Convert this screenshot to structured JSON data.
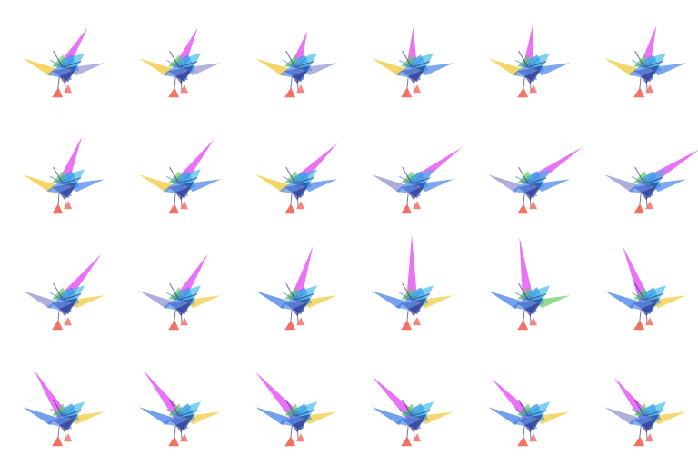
{
  "grid": {
    "rows": 4,
    "cols": 6
  },
  "colors": {
    "background": "#ffffff",
    "magenta": "#e23cf2",
    "blue": "#3f7de6",
    "navy": "#2a2f86",
    "green": "#61c95a",
    "yellow": "#f1c52d",
    "lavender": "#8e8fd0",
    "cyan": "#38b7e8",
    "salmon": "#f26a5c"
  },
  "frames": [
    {
      "spike_angle": -58,
      "spike_length": 52,
      "left_blade": "yellow",
      "right_blade": "lavender"
    },
    {
      "spike_angle": -65,
      "spike_length": 48,
      "left_blade": "yellow",
      "right_blade": "lavender"
    },
    {
      "spike_angle": -72,
      "spike_length": 42,
      "left_blade": "yellow",
      "right_blade": "lavender"
    },
    {
      "spike_angle": -88,
      "spike_length": 44,
      "left_blade": "yellow",
      "right_blade": "blue"
    },
    {
      "spike_angle": -84,
      "spike_length": 46,
      "left_blade": "yellow",
      "right_blade": "blue"
    },
    {
      "spike_angle": -74,
      "spike_length": 48,
      "left_blade": "yellow",
      "right_blade": "blue"
    },
    {
      "spike_angle": -68,
      "spike_length": 56,
      "left_blade": "yellow",
      "right_blade": "blue"
    },
    {
      "spike_angle": -52,
      "spike_length": 62,
      "left_blade": "yellow",
      "right_blade": "blue"
    },
    {
      "spike_angle": -44,
      "spike_length": 64,
      "left_blade": "yellow",
      "right_blade": "blue"
    },
    {
      "spike_angle": -36,
      "spike_length": 68,
      "left_blade": "lavender",
      "right_blade": "blue"
    },
    {
      "spike_angle": -34,
      "spike_length": 72,
      "left_blade": "lavender",
      "right_blade": "blue"
    },
    {
      "spike_angle": -32,
      "spike_length": 72,
      "left_blade": "lavender",
      "right_blade": "blue"
    },
    {
      "spike_angle": -50,
      "spike_length": 66,
      "left_blade": "lavender",
      "right_blade": "yellow"
    },
    {
      "spike_angle": -58,
      "spike_length": 60,
      "left_blade": "lavender",
      "right_blade": "yellow"
    },
    {
      "spike_angle": -72,
      "spike_length": 62,
      "left_blade": "blue",
      "right_blade": "yellow"
    },
    {
      "spike_angle": -90,
      "spike_length": 72,
      "left_blade": "blue",
      "right_blade": "yellow"
    },
    {
      "spike_angle": -98,
      "spike_length": 70,
      "left_blade": "blue",
      "right_blade": "green"
    },
    {
      "spike_angle": -112,
      "spike_length": 64,
      "left_blade": "blue",
      "right_blade": "yellow"
    },
    {
      "spike_angle": -122,
      "spike_length": 60,
      "left_blade": "blue",
      "right_blade": "yellow"
    },
    {
      "spike_angle": -128,
      "spike_length": 64,
      "left_blade": "blue",
      "right_blade": "yellow"
    },
    {
      "spike_angle": -132,
      "spike_length": 66,
      "left_blade": "blue",
      "right_blade": "yellow"
    },
    {
      "spike_angle": -135,
      "spike_length": 62,
      "left_blade": "blue",
      "right_blade": "yellow"
    },
    {
      "spike_angle": -134,
      "spike_length": 58,
      "left_blade": "blue",
      "right_blade": "yellow"
    },
    {
      "spike_angle": -128,
      "spike_length": 54,
      "left_blade": "lavender",
      "right_blade": "yellow"
    }
  ]
}
